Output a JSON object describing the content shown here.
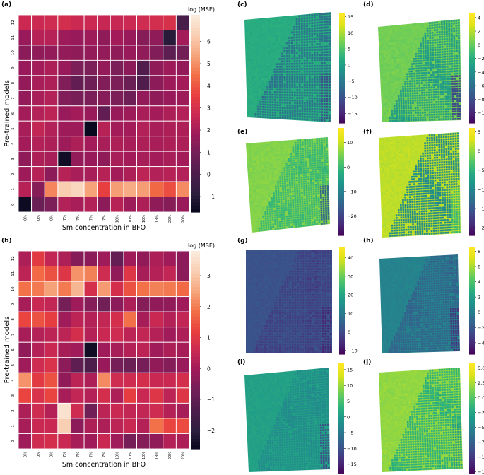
{
  "colors": {
    "rocket_stops": [
      "#03051a",
      "#2c1e3e",
      "#4c1d4b",
      "#711f57",
      "#9c1a5a",
      "#c92853",
      "#e83f3f",
      "#f26f46",
      "#f6a47b",
      "#f9cdb0",
      "#faebdd"
    ],
    "viridis_stops": [
      "#440154",
      "#482677",
      "#404788",
      "#33638d",
      "#287d8e",
      "#1f968b",
      "#29af7f",
      "#55c667",
      "#95d840",
      "#dce319",
      "#fde725"
    ]
  },
  "chart_data": [
    {
      "id": "a",
      "panel_label": "(a)",
      "type": "heatmap",
      "xlabel": "Sm concentration in BFO",
      "ylabel": "Pre-trained models",
      "x_ticklabels": [
        "0%",
        "0%",
        "0%",
        "7%",
        "7%",
        "7%",
        "7%",
        "10%",
        "10%",
        "10%",
        "13%",
        "20%",
        "20%"
      ],
      "y_ticklabels": [
        "0",
        "1",
        "2",
        "3",
        "4",
        "5",
        "6",
        "7",
        "8",
        "9",
        "10",
        "11",
        "12"
      ],
      "colorbar_label": "log (MSE)",
      "colorbar_ticks": [
        -1,
        0,
        1,
        2,
        3,
        4,
        5,
        6
      ],
      "vmin": -1.7,
      "vmax": 7.2,
      "values": [
        [
          2.8,
          2.8,
          2.9,
          3.0,
          2.8,
          2.8,
          2.7,
          2.7,
          2.8,
          2.9,
          3.0,
          3.1,
          0.0
        ],
        [
          1.8,
          2.4,
          2.4,
          1.9,
          1.8,
          1.9,
          1.6,
          2.0,
          1.8,
          1.4,
          1.6,
          -0.9,
          2.0
        ],
        [
          1.5,
          1.6,
          1.7,
          1.7,
          1.6,
          1.7,
          1.7,
          1.6,
          1.8,
          1.6,
          1.3,
          0.5,
          1.0
        ],
        [
          1.8,
          2.0,
          2.2,
          1.8,
          1.2,
          1.2,
          1.7,
          1.2,
          1.5,
          0.2,
          1.6,
          1.9,
          1.7
        ],
        [
          1.7,
          2.1,
          2.2,
          1.3,
          0.6,
          0.9,
          1.3,
          1.2,
          0.8,
          0.2,
          1.5,
          1.9,
          2.0
        ],
        [
          1.7,
          2.1,
          2.3,
          1.3,
          1.1,
          1.2,
          1.4,
          1.2,
          0.9,
          1.7,
          1.6,
          1.8,
          1.9
        ],
        [
          2.0,
          2.3,
          2.5,
          1.8,
          2.0,
          1.8,
          0.6,
          1.8,
          1.9,
          2.1,
          2.0,
          2.2,
          2.3
        ],
        [
          2.1,
          2.6,
          2.3,
          1.9,
          1.9,
          -1.6,
          2.4,
          2.0,
          2.0,
          2.3,
          2.1,
          2.2,
          2.2
        ],
        [
          2.0,
          2.3,
          2.2,
          1.9,
          2.2,
          2.0,
          2.1,
          2.2,
          2.1,
          2.2,
          2.1,
          2.2,
          2.2
        ],
        [
          1.6,
          2.2,
          2.1,
          -1.4,
          1.7,
          1.8,
          1.6,
          2.1,
          2.0,
          2.1,
          2.0,
          2.1,
          2.0
        ],
        [
          1.9,
          2.4,
          1.5,
          2.4,
          2.1,
          2.1,
          2.4,
          2.0,
          2.2,
          2.5,
          2.3,
          2.4,
          2.3
        ],
        [
          2.4,
          1.4,
          4.9,
          6.3,
          6.6,
          5.4,
          3.6,
          5.3,
          5.6,
          5.3,
          4.4,
          3.9,
          5.0
        ],
        [
          -1.5,
          0.8,
          1.2,
          2.3,
          2.1,
          2.3,
          1.5,
          2.4,
          1.9,
          2.2,
          1.6,
          1.4,
          1.8
        ]
      ]
    },
    {
      "id": "b",
      "panel_label": "(b)",
      "type": "heatmap",
      "xlabel": "Sm concentration in BFO",
      "ylabel": "Pre-trained models",
      "x_ticklabels": [
        "0%",
        "0%",
        "0%",
        "7%",
        "7%",
        "7%",
        "7%",
        "10%",
        "10%",
        "10%",
        "13%",
        "20%",
        "20%"
      ],
      "y_ticklabels": [
        "0",
        "1",
        "2",
        "3",
        "4",
        "5",
        "6",
        "7",
        "8",
        "9",
        "10",
        "11",
        "12"
      ],
      "colorbar_label": "log (MSE)",
      "colorbar_ticks": [
        -2,
        -1,
        0,
        1,
        2,
        3
      ],
      "vmin": -2.6,
      "vmax": 3.8,
      "values": [
        [
          0.2,
          1.1,
          0.5,
          0.2,
          -0.4,
          -0.3,
          0.0,
          -0.9,
          0.0,
          -0.2,
          0.2,
          0.0,
          -0.3
        ],
        [
          0.4,
          1.8,
          1.5,
          1.0,
          2.3,
          2.1,
          0.7,
          -0.2,
          1.0,
          0.1,
          0.3,
          0.5,
          -0.3
        ],
        [
          1.9,
          2.0,
          2.5,
          2.0,
          2.8,
          0.8,
          2.4,
          0.8,
          1.5,
          1.9,
          2.1,
          2.0,
          1.8
        ],
        [
          0.1,
          0.6,
          0.5,
          -0.6,
          0.0,
          -0.4,
          -0.7,
          -0.3,
          0.2,
          -0.4,
          -0.2,
          -0.2,
          0.0
        ],
        [
          1.3,
          1.5,
          1.2,
          0.0,
          0.4,
          0.3,
          0.5,
          0.8,
          1.9,
          0.1,
          0.6,
          0.3,
          0.5
        ],
        [
          0.1,
          0.3,
          0.4,
          0.4,
          0.8,
          0.3,
          0.6,
          0.7,
          0.4,
          0.5,
          0.3,
          0.0,
          0.2
        ],
        [
          -0.2,
          0.3,
          0.6,
          0.1,
          0.0,
          -2.4,
          0.0,
          0.1,
          0.3,
          0.4,
          0.0,
          0.2,
          0.1
        ],
        [
          0.0,
          0.7,
          0.9,
          -0.3,
          -1.0,
          -1.3,
          -0.1,
          -0.6,
          -0.8,
          -0.6,
          -0.2,
          -0.4,
          -0.1
        ],
        [
          2.3,
          1.1,
          1.5,
          -0.2,
          0.4,
          0.2,
          2.2,
          0.7,
          0.7,
          0.8,
          0.6,
          0.6,
          0.8
        ],
        [
          1.3,
          0.9,
          1.3,
          0.1,
          0.5,
          0.3,
          0.8,
          0.2,
          1.2,
          0.6,
          1.0,
          0.4,
          1.0
        ],
        [
          0.2,
          0.7,
          0.3,
          3.6,
          0.7,
          -0.7,
          0.4,
          0.6,
          0.5,
          0.5,
          0.7,
          0.3,
          0.1
        ],
        [
          0.1,
          0.6,
          0.6,
          3.2,
          -0.3,
          0.2,
          0.2,
          0.4,
          0.6,
          0.3,
          1.9,
          1.3,
          1.4
        ],
        [
          0.0,
          0.7,
          0.8,
          0.6,
          0.1,
          0.0,
          0.6,
          0.0,
          -0.6,
          -0.4,
          -0.2,
          0.3,
          0.2
        ]
      ]
    },
    {
      "id": "c",
      "panel_label": "(c)",
      "type": "heatmap",
      "colorbar_ticks": [
        -15,
        -10,
        -5,
        0,
        5,
        10,
        15
      ],
      "vmin": -18,
      "vmax": 16,
      "map_base": 2,
      "map_dark": -6,
      "map_edge": -10
    },
    {
      "id": "d",
      "panel_label": "(d)",
      "type": "heatmap",
      "colorbar_ticks": [
        -10,
        -8,
        -6,
        -4,
        -2,
        0,
        2,
        4
      ],
      "vmin": -11.5,
      "vmax": 4.6,
      "map_base": 0.5,
      "map_dark": -3,
      "map_edge": -8
    },
    {
      "id": "e",
      "panel_label": "(e)",
      "type": "heatmap",
      "colorbar_ticks": [
        -20,
        -10,
        0,
        10
      ],
      "vmin": -28,
      "vmax": 16,
      "map_base": 6,
      "map_dark": 0,
      "map_edge": -14
    },
    {
      "id": "f",
      "panel_label": "(f)",
      "type": "heatmap",
      "colorbar_ticks": [
        -20,
        -15,
        -10,
        -5,
        0,
        5
      ],
      "vmin": -22,
      "vmax": 6,
      "map_base": 2,
      "map_dark": -9,
      "map_edge": -4
    },
    {
      "id": "g",
      "panel_label": "(g)",
      "type": "heatmap",
      "colorbar_ticks": [
        -10,
        0,
        10,
        20,
        30,
        40
      ],
      "vmin": -12,
      "vmax": 46,
      "map_base": 2,
      "map_dark": -2,
      "map_edge": -6
    },
    {
      "id": "h",
      "panel_label": "(h)",
      "type": "heatmap",
      "colorbar_ticks": [
        -4,
        -2,
        0,
        2,
        4,
        6,
        8
      ],
      "vmin": -5.5,
      "vmax": 8.6,
      "map_base": 0.5,
      "map_dark": -1.2,
      "map_edge": -3.5
    },
    {
      "id": "i",
      "panel_label": "(i)",
      "type": "heatmap",
      "colorbar_ticks": [
        -15,
        -10,
        -5,
        0,
        5,
        10,
        15
      ],
      "vmin": -18,
      "vmax": 17,
      "map_base": 1,
      "map_dark": -2,
      "map_edge": -10
    },
    {
      "id": "j",
      "panel_label": "(j)",
      "type": "heatmap",
      "colorbar_ticks": [
        -12.5,
        -10.0,
        -7.5,
        -5.0,
        -2.5,
        0.0,
        2.5,
        5.0
      ],
      "colorbar_ticklabels": [
        "-12.5",
        "-10.0",
        "-7.5",
        "-5.0",
        "-2.5",
        "0.0",
        "2.5",
        "5.0"
      ],
      "vmin": -12.8,
      "vmax": 5.8,
      "map_base": 2,
      "map_dark": -1.5,
      "map_edge": -3
    }
  ]
}
